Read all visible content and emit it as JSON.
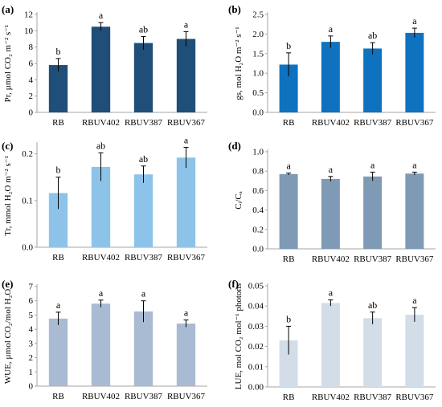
{
  "chart_data": [
    {
      "panel": "(a)",
      "type": "bar",
      "categories": [
        "RB",
        "RBUV402",
        "RBUV387",
        "RBUV367"
      ],
      "values": [
        5.8,
        10.5,
        8.5,
        9.0
      ],
      "errors": [
        0.8,
        0.5,
        0.8,
        0.9
      ],
      "letters": [
        "b",
        "a",
        "ab",
        "a"
      ],
      "ylabel": "Pr, µmol CO₂ m⁻² s⁻¹",
      "ylim": [
        0,
        12
      ],
      "yticks": [
        0,
        2,
        4,
        6,
        8,
        10,
        12
      ],
      "tick_decimals": 0,
      "color": "#1f4e79",
      "grid": false
    },
    {
      "panel": "(b)",
      "type": "bar",
      "categories": [
        "RB",
        "RBUV402",
        "RBUV387",
        "RBUV367"
      ],
      "values": [
        1.22,
        1.8,
        1.63,
        2.03
      ],
      "errors": [
        0.3,
        0.15,
        0.15,
        0.12
      ],
      "letters": [
        "b",
        "a",
        "ab",
        "a"
      ],
      "ylabel": "gs, mol H₂O m⁻² s⁻¹",
      "ylim": [
        0,
        2.5
      ],
      "yticks": [
        0,
        0.5,
        1.0,
        1.5,
        2.0,
        2.5
      ],
      "tick_decimals": 1,
      "color": "#0e72bf",
      "grid": false
    },
    {
      "panel": "(c)",
      "type": "bar",
      "categories": [
        "RB",
        "RBUV402",
        "RBUV387",
        "RBUV367"
      ],
      "values": [
        0.116,
        0.172,
        0.156,
        0.192
      ],
      "errors": [
        0.034,
        0.03,
        0.018,
        0.022
      ],
      "letters": [
        "b",
        "ab",
        "ab",
        "a"
      ],
      "ylabel": "Tr, mmol H₂O m⁻² s⁻¹",
      "ylim": [
        0,
        0.22
      ],
      "yticks": [
        0,
        0.1,
        0.2
      ],
      "tick_decimals": 1,
      "color": "#8dc3e8",
      "grid": false
    },
    {
      "panel": "(d)",
      "type": "bar",
      "categories": [
        "RB",
        "RBUV402",
        "RBUV387",
        "RBUV367"
      ],
      "values": [
        0.77,
        0.72,
        0.745,
        0.775
      ],
      "errors": [
        0.01,
        0.025,
        0.045,
        0.015
      ],
      "letters": [
        "a",
        "a",
        "a",
        "a"
      ],
      "ylabel": "Cᵢ/Cₐ",
      "ylim": [
        0,
        1.0
      ],
      "yticks": [
        0,
        0.2,
        0.4,
        0.6,
        0.8,
        1.0
      ],
      "tick_decimals": 1,
      "color": "#7f9ab5",
      "grid": false
    },
    {
      "panel": "(e)",
      "type": "bar",
      "categories": [
        "RB",
        "RBUV402",
        "RBUV387",
        "RBUV367"
      ],
      "values": [
        4.75,
        5.8,
        5.25,
        4.4
      ],
      "errors": [
        0.45,
        0.25,
        0.75,
        0.25
      ],
      "letters": [
        "a",
        "a",
        "a",
        "a"
      ],
      "ylabel": "WUE, µmol CO₂/mol H₂O",
      "ylim": [
        0,
        7
      ],
      "yticks": [
        0,
        1,
        2,
        3,
        4,
        5,
        6,
        7
      ],
      "tick_decimals": 0,
      "color": "#a9bbd3",
      "grid": false
    },
    {
      "panel": "(f)",
      "type": "bar",
      "categories": [
        "RB",
        "RBUV402",
        "RBUV387",
        "RBUV367"
      ],
      "values": [
        0.023,
        0.0415,
        0.034,
        0.0357
      ],
      "errors": [
        0.007,
        0.0015,
        0.003,
        0.0035
      ],
      "letters": [
        "b",
        "a",
        "ab",
        "a"
      ],
      "ylabel": "LUE, mol CO₂ mol⁻¹ photons",
      "ylim": [
        0,
        0.05
      ],
      "yticks": [
        0,
        0.01,
        0.02,
        0.03,
        0.04,
        0.05
      ],
      "tick_decimals": 2,
      "color": "#d3dde8",
      "grid": false
    }
  ]
}
